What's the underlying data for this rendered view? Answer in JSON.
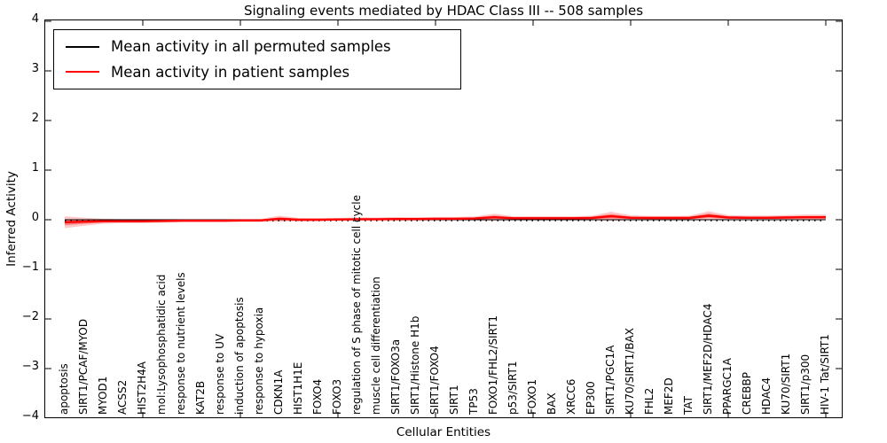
{
  "title": "Signaling events mediated by HDAC Class III -- 508 samples",
  "y_axis": {
    "label": "Inferred Activity",
    "tick_labels": [
      "4",
      "3",
      "2",
      "1",
      "0",
      "−1",
      "−2",
      "−3",
      "−4"
    ],
    "tick_values": [
      4,
      3,
      2,
      1,
      0,
      -1,
      -2,
      -3,
      -4
    ]
  },
  "x_axis": {
    "label": "Cellular Entities",
    "tick_indices": [
      4,
      9,
      14,
      19,
      24,
      29,
      34,
      39
    ]
  },
  "legend": {
    "position": "upper left"
  },
  "chart_data": {
    "type": "line",
    "ylim": [
      -4,
      4
    ],
    "grid": false,
    "categories": [
      "apoptosis",
      "SIRT1/PCAF/MYOD",
      "MYOD1",
      "ACSS2",
      "HIST2H4A",
      "mol:Lysophosphatidic acid",
      "response to nutrient levels",
      "KAT2B",
      "response to UV",
      "induction of apoptosis",
      "response to hypoxia",
      "CDKN1A",
      "HIST1H1E",
      "FOXO4",
      "FOXO3",
      "regulation of S phase of mitotic cell cycle",
      "muscle cell differentiation",
      "SIRT1/FOXO3a",
      "SIRT1/Histone H1b",
      "SIRT1/FOXO4",
      "SIRT1",
      "TP53",
      "FOXO1/FHL2/SIRT1",
      "p53/SIRT1",
      "FOXO1",
      "BAX",
      "XRCC6",
      "EP300",
      "SIRT1/PGC1A",
      "KU70/SIRT1/BAX",
      "FHL2",
      "MEF2D",
      "TAT",
      "SIRT1/MEF2D/HDAC4",
      "PPARGC1A",
      "CREBBP",
      "HDAC4",
      "KU70/SIRT1",
      "SIRT1/p300",
      "HIV-1 Tat/SIRT1"
    ],
    "series": [
      {
        "name": "Mean activity in all permuted samples",
        "color": "#000000",
        "linestyle": "solid",
        "values": [
          0,
          0,
          0,
          0,
          0,
          0,
          0,
          0,
          0,
          0,
          0,
          0,
          0,
          0,
          0,
          0,
          0,
          0,
          0,
          0,
          0,
          0,
          0,
          0,
          0,
          0,
          0,
          0,
          0,
          0,
          0,
          0,
          0,
          0,
          0,
          0,
          0,
          0,
          0,
          0
        ]
      },
      {
        "name": "Mean activity in patient samples",
        "color": "#ff0000",
        "linestyle": "solid",
        "values": [
          -0.05,
          -0.04,
          -0.03,
          -0.03,
          -0.03,
          -0.025,
          -0.02,
          -0.02,
          -0.02,
          -0.015,
          -0.015,
          0.02,
          0,
          0,
          0.005,
          0.01,
          0.01,
          0.015,
          0.015,
          0.02,
          0.02,
          0.025,
          0.05,
          0.03,
          0.03,
          0.03,
          0.03,
          0.035,
          0.07,
          0.04,
          0.035,
          0.035,
          0.035,
          0.08,
          0.045,
          0.04,
          0.04,
          0.045,
          0.05,
          0.05
        ],
        "band_halfwidth": [
          0.12,
          0.08,
          0.05,
          0.04,
          0.04,
          0.035,
          0.03,
          0.03,
          0.03,
          0.03,
          0.03,
          0.06,
          0.035,
          0.03,
          0.03,
          0.035,
          0.035,
          0.04,
          0.035,
          0.035,
          0.035,
          0.04,
          0.07,
          0.04,
          0.04,
          0.04,
          0.04,
          0.045,
          0.09,
          0.05,
          0.04,
          0.04,
          0.045,
          0.09,
          0.05,
          0.045,
          0.045,
          0.05,
          0.055,
          0.055
        ]
      }
    ],
    "zero_line": {
      "color": "#000000",
      "linestyle": "dotted",
      "y": 0
    }
  }
}
